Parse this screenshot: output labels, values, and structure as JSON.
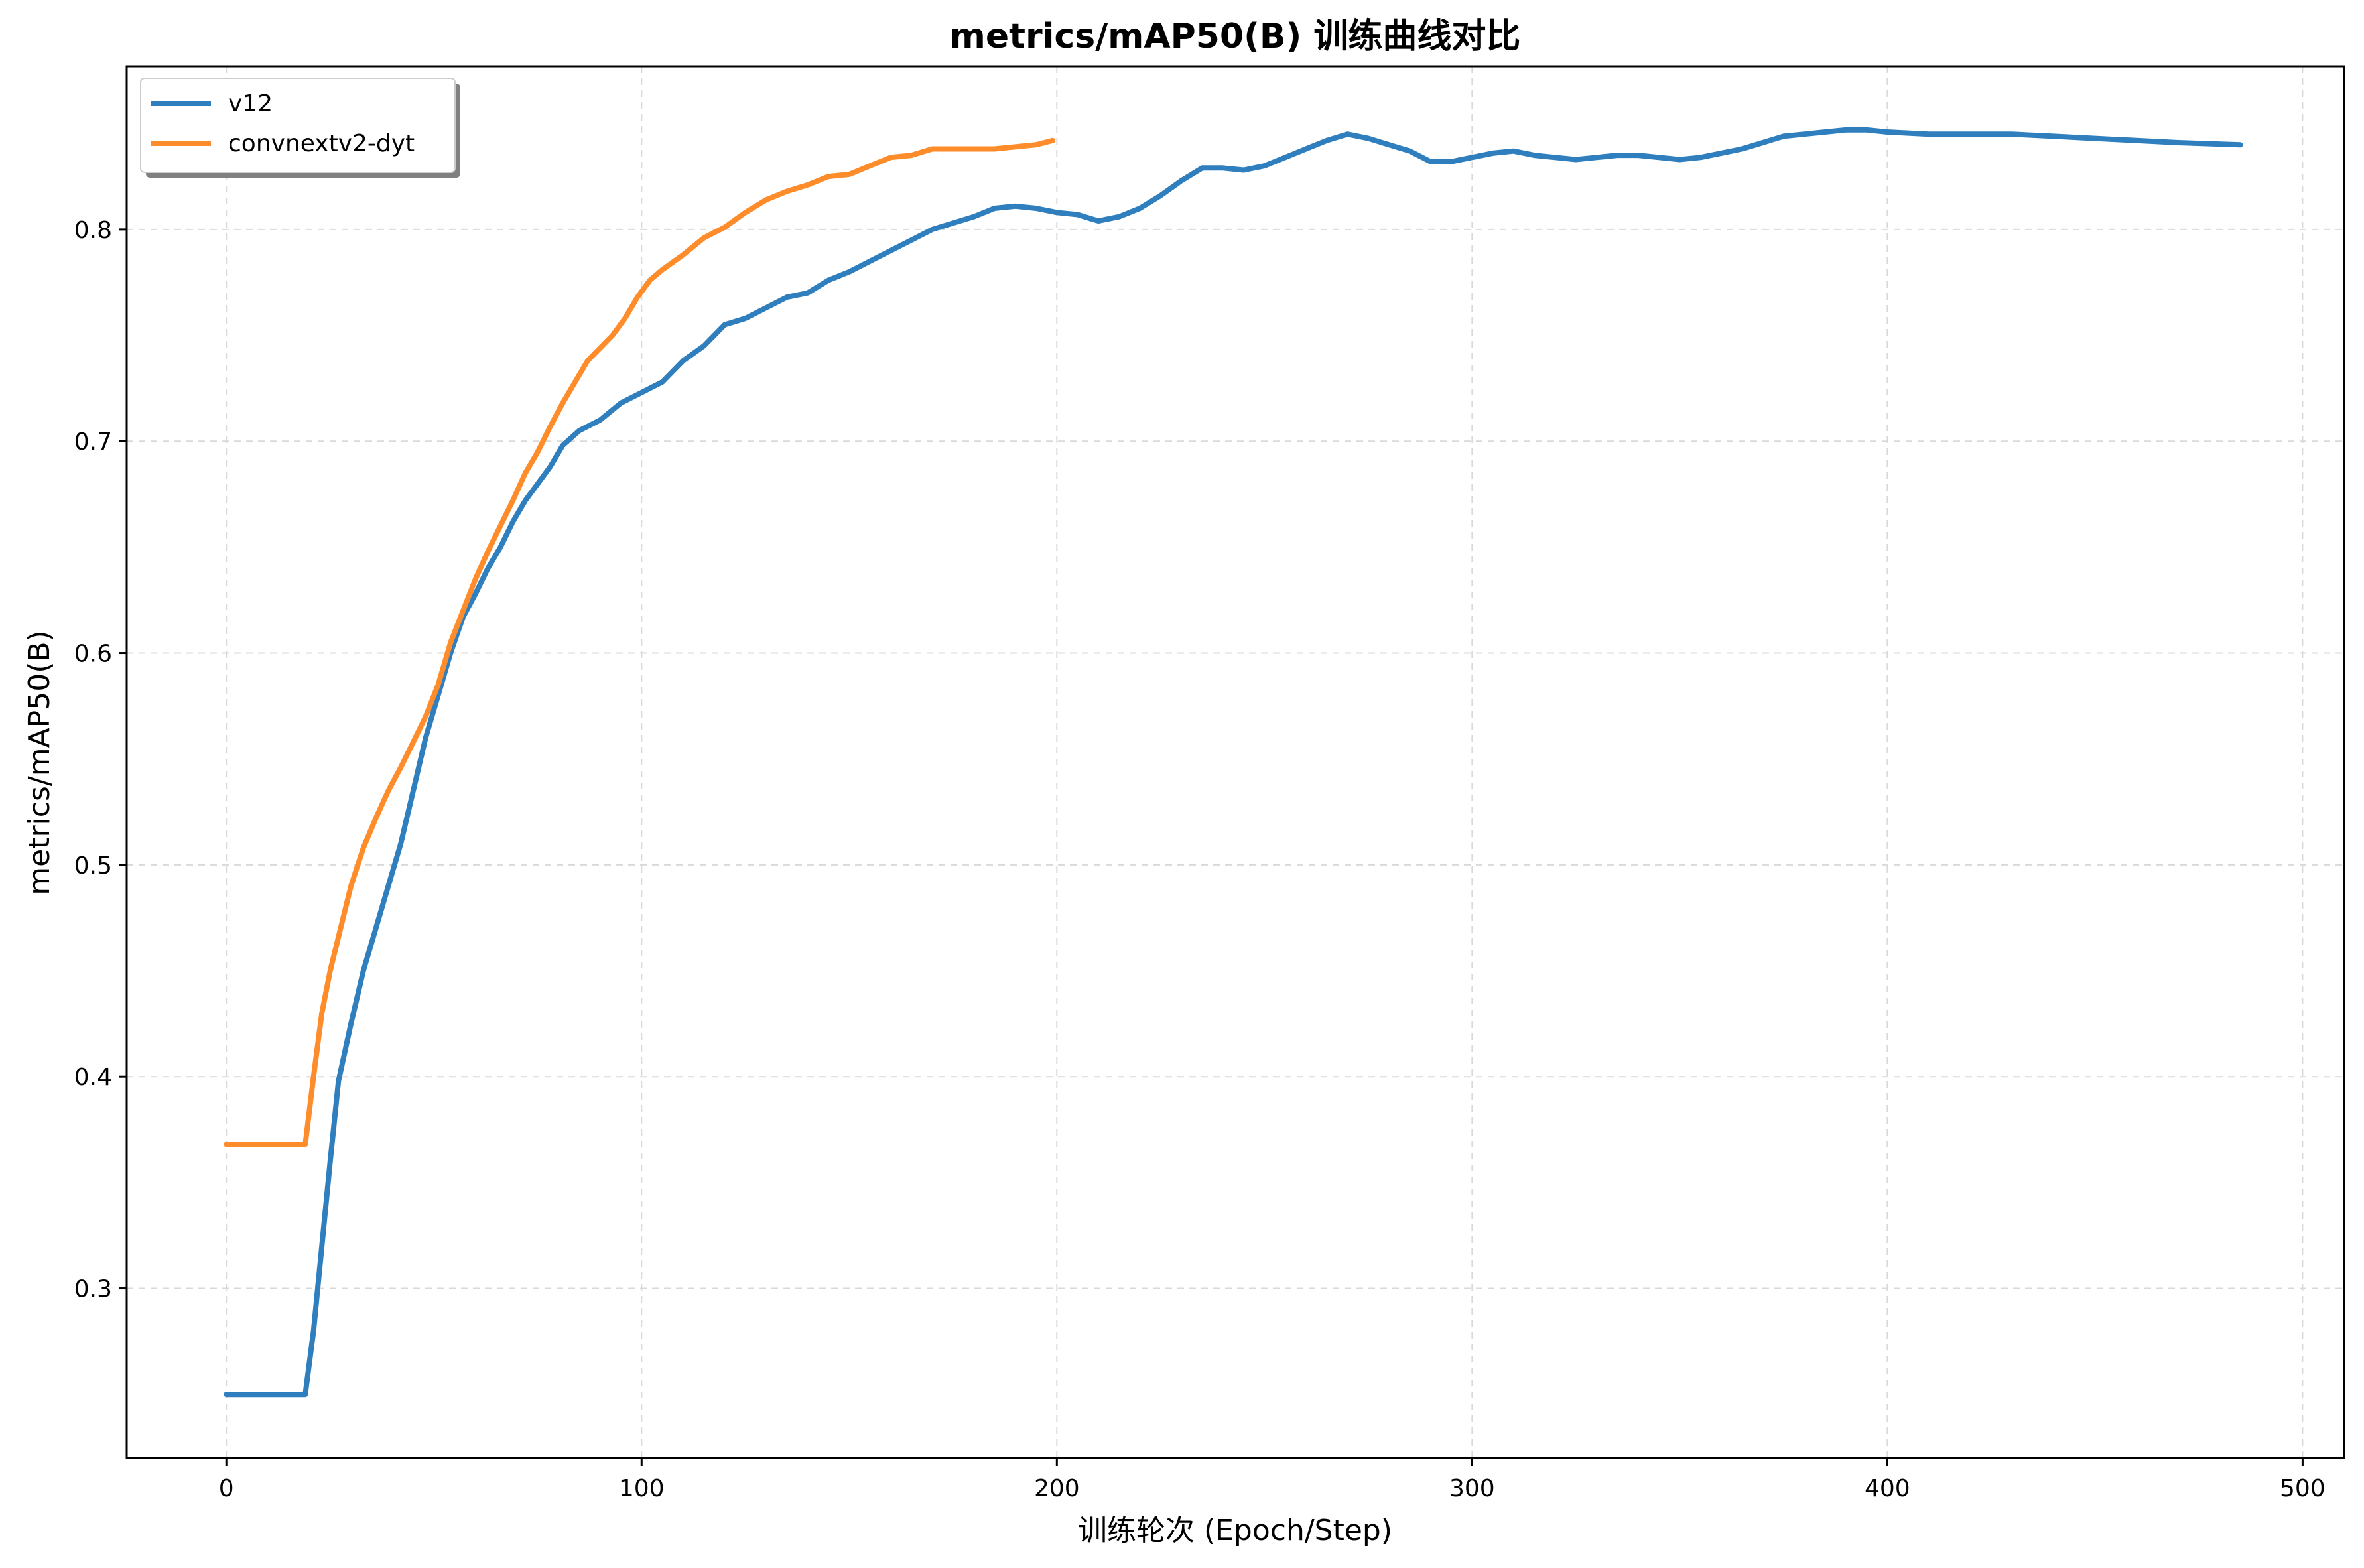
{
  "chart_data": {
    "type": "line",
    "title": "metrics/mAP50(B) 训练曲线对比",
    "xlabel": "训练轮次 (Epoch/Step)",
    "ylabel": "metrics/mAP50(B)",
    "xlim": [
      -24,
      510
    ],
    "ylim": [
      0.22,
      0.877
    ],
    "xticks": [
      0,
      100,
      200,
      300,
      400,
      500
    ],
    "yticks": [
      0.3,
      0.4,
      0.5,
      0.6,
      0.7,
      0.8
    ],
    "grid": true,
    "legend_position": "top-left",
    "series": [
      {
        "name": "v12",
        "color": "#2f7fbf",
        "points": [
          [
            0,
            0.25
          ],
          [
            19,
            0.25
          ],
          [
            21,
            0.28
          ],
          [
            23,
            0.32
          ],
          [
            25,
            0.36
          ],
          [
            27,
            0.398
          ],
          [
            30,
            0.425
          ],
          [
            33,
            0.45
          ],
          [
            36,
            0.47
          ],
          [
            39,
            0.49
          ],
          [
            42,
            0.51
          ],
          [
            45,
            0.535
          ],
          [
            48,
            0.56
          ],
          [
            51,
            0.58
          ],
          [
            54,
            0.6
          ],
          [
            57,
            0.617
          ],
          [
            60,
            0.628
          ],
          [
            63,
            0.64
          ],
          [
            66,
            0.65
          ],
          [
            69,
            0.662
          ],
          [
            72,
            0.672
          ],
          [
            75,
            0.68
          ],
          [
            78,
            0.688
          ],
          [
            81,
            0.698
          ],
          [
            85,
            0.705
          ],
          [
            90,
            0.71
          ],
          [
            95,
            0.718
          ],
          [
            100,
            0.723
          ],
          [
            105,
            0.728
          ],
          [
            110,
            0.738
          ],
          [
            115,
            0.745
          ],
          [
            120,
            0.755
          ],
          [
            125,
            0.758
          ],
          [
            130,
            0.763
          ],
          [
            135,
            0.768
          ],
          [
            140,
            0.77
          ],
          [
            145,
            0.776
          ],
          [
            150,
            0.78
          ],
          [
            155,
            0.785
          ],
          [
            160,
            0.79
          ],
          [
            165,
            0.795
          ],
          [
            170,
            0.8
          ],
          [
            175,
            0.803
          ],
          [
            180,
            0.806
          ],
          [
            185,
            0.81
          ],
          [
            190,
            0.811
          ],
          [
            195,
            0.81
          ],
          [
            200,
            0.808
          ],
          [
            205,
            0.807
          ],
          [
            210,
            0.804
          ],
          [
            215,
            0.806
          ],
          [
            220,
            0.81
          ],
          [
            225,
            0.816
          ],
          [
            230,
            0.823
          ],
          [
            235,
            0.829
          ],
          [
            240,
            0.829
          ],
          [
            245,
            0.828
          ],
          [
            250,
            0.83
          ],
          [
            255,
            0.834
          ],
          [
            260,
            0.838
          ],
          [
            265,
            0.842
          ],
          [
            270,
            0.845
          ],
          [
            275,
            0.843
          ],
          [
            280,
            0.84
          ],
          [
            285,
            0.837
          ],
          [
            290,
            0.832
          ],
          [
            295,
            0.832
          ],
          [
            300,
            0.834
          ],
          [
            305,
            0.836
          ],
          [
            310,
            0.837
          ],
          [
            315,
            0.835
          ],
          [
            320,
            0.834
          ],
          [
            325,
            0.833
          ],
          [
            330,
            0.834
          ],
          [
            335,
            0.835
          ],
          [
            340,
            0.835
          ],
          [
            345,
            0.834
          ],
          [
            350,
            0.833
          ],
          [
            355,
            0.834
          ],
          [
            360,
            0.836
          ],
          [
            365,
            0.838
          ],
          [
            370,
            0.841
          ],
          [
            375,
            0.844
          ],
          [
            380,
            0.845
          ],
          [
            385,
            0.846
          ],
          [
            390,
            0.847
          ],
          [
            395,
            0.847
          ],
          [
            400,
            0.846
          ],
          [
            410,
            0.845
          ],
          [
            420,
            0.845
          ],
          [
            430,
            0.845
          ],
          [
            440,
            0.844
          ],
          [
            450,
            0.843
          ],
          [
            460,
            0.842
          ],
          [
            470,
            0.841
          ],
          [
            485,
            0.84
          ]
        ]
      },
      {
        "name": "convnextv2-dyt",
        "color": "#ff8c2a",
        "points": [
          [
            0,
            0.368
          ],
          [
            19,
            0.368
          ],
          [
            21,
            0.4
          ],
          [
            23,
            0.43
          ],
          [
            25,
            0.45
          ],
          [
            27,
            0.466
          ],
          [
            30,
            0.49
          ],
          [
            33,
            0.508
          ],
          [
            36,
            0.522
          ],
          [
            39,
            0.535
          ],
          [
            42,
            0.546
          ],
          [
            45,
            0.558
          ],
          [
            48,
            0.57
          ],
          [
            51,
            0.585
          ],
          [
            54,
            0.605
          ],
          [
            57,
            0.62
          ],
          [
            60,
            0.635
          ],
          [
            63,
            0.648
          ],
          [
            66,
            0.66
          ],
          [
            69,
            0.672
          ],
          [
            72,
            0.685
          ],
          [
            75,
            0.695
          ],
          [
            78,
            0.707
          ],
          [
            81,
            0.718
          ],
          [
            84,
            0.728
          ],
          [
            87,
            0.738
          ],
          [
            90,
            0.744
          ],
          [
            93,
            0.75
          ],
          [
            96,
            0.758
          ],
          [
            99,
            0.768
          ],
          [
            102,
            0.776
          ],
          [
            105,
            0.781
          ],
          [
            110,
            0.788
          ],
          [
            115,
            0.796
          ],
          [
            120,
            0.801
          ],
          [
            125,
            0.808
          ],
          [
            130,
            0.814
          ],
          [
            135,
            0.818
          ],
          [
            140,
            0.821
          ],
          [
            145,
            0.825
          ],
          [
            150,
            0.826
          ],
          [
            155,
            0.83
          ],
          [
            160,
            0.834
          ],
          [
            165,
            0.835
          ],
          [
            170,
            0.838
          ],
          [
            175,
            0.838
          ],
          [
            180,
            0.838
          ],
          [
            185,
            0.838
          ],
          [
            190,
            0.839
          ],
          [
            195,
            0.84
          ],
          [
            199,
            0.842
          ]
        ]
      }
    ]
  }
}
